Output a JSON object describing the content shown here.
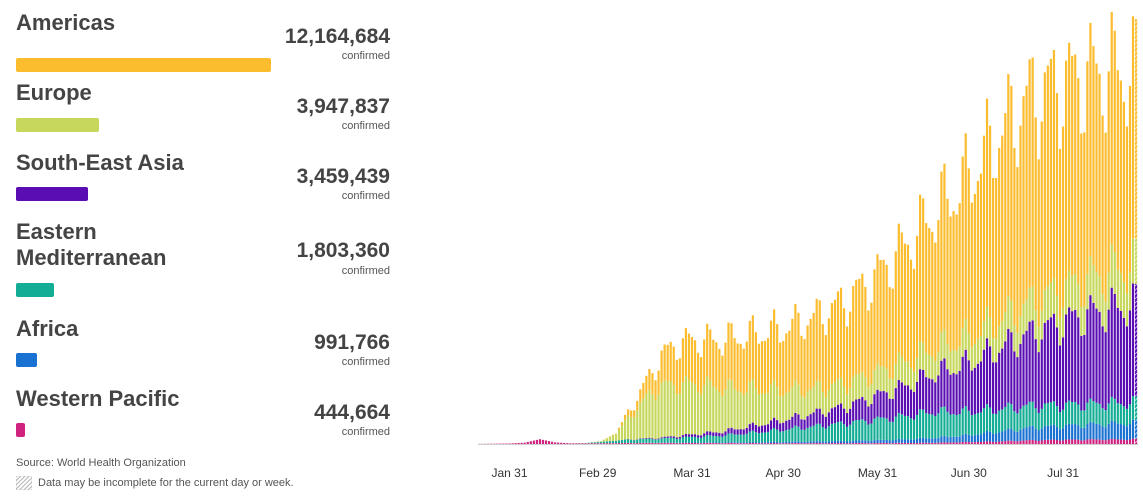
{
  "regions": [
    {
      "name": "Americas",
      "value": "12,164,684",
      "unit": "confirmed",
      "color": "#fbbc2e",
      "bar_fraction": 1.0
    },
    {
      "name": "Europe",
      "value": "3,947,837",
      "unit": "confirmed",
      "color": "#c6d75b",
      "bar_fraction": 0.325
    },
    {
      "name": "South-East Asia",
      "value": "3,459,439",
      "unit": "confirmed",
      "color": "#5a0db2",
      "bar_fraction": 0.284
    },
    {
      "name": "Eastern Mediterranean",
      "value": "1,803,360",
      "unit": "confirmed",
      "color": "#12ad94",
      "bar_fraction": 0.148
    },
    {
      "name": "Africa",
      "value": "991,766",
      "unit": "confirmed",
      "color": "#1971d1",
      "bar_fraction": 0.082
    },
    {
      "name": "Western Pacific",
      "value": "444,664",
      "unit": "confirmed",
      "color": "#d0237f",
      "bar_fraction": 0.037
    }
  ],
  "footer": {
    "source": "Source: World Health Organization",
    "note": "Data may be incomplete for the current day or week."
  },
  "chart_data": {
    "type": "bar",
    "stacked": true,
    "x_start": "2020-01-21",
    "x_end": "2020-08-24",
    "x_ticks": [
      "Jan 31",
      "Feb 29",
      "Mar 31",
      "Apr 30",
      "May 31",
      "Jun 30",
      "Jul 31"
    ],
    "y_axis_visible": false,
    "gridlines": false,
    "last_bar_incomplete": true,
    "series": [
      {
        "name": "Western Pacific",
        "color": "#d0237f",
        "keypoints": [
          [
            0,
            100
          ],
          [
            10,
            400
          ],
          [
            15,
            1000
          ],
          [
            20,
            3500
          ],
          [
            25,
            1200
          ],
          [
            30,
            500
          ],
          [
            40,
            600
          ],
          [
            60,
            800
          ],
          [
            80,
            700
          ],
          [
            100,
            600
          ],
          [
            130,
            700
          ],
          [
            150,
            900
          ],
          [
            170,
            1800
          ],
          [
            180,
            2600
          ],
          [
            190,
            3000
          ],
          [
            216,
            3400
          ]
        ]
      },
      {
        "name": "Africa",
        "color": "#1971d1",
        "keypoints": [
          [
            0,
            0
          ],
          [
            40,
            0
          ],
          [
            50,
            40
          ],
          [
            60,
            150
          ],
          [
            80,
            500
          ],
          [
            100,
            900
          ],
          [
            120,
            1500
          ],
          [
            140,
            2500
          ],
          [
            160,
            5000
          ],
          [
            180,
            9000
          ],
          [
            200,
            11000
          ],
          [
            216,
            12000
          ]
        ]
      },
      {
        "name": "Eastern Mediterranean",
        "color": "#12ad94",
        "keypoints": [
          [
            0,
            0
          ],
          [
            30,
            0
          ],
          [
            35,
            200
          ],
          [
            40,
            1000
          ],
          [
            50,
            2500
          ],
          [
            60,
            3000
          ],
          [
            80,
            5000
          ],
          [
            100,
            9000
          ],
          [
            120,
            13000
          ],
          [
            140,
            17000
          ],
          [
            150,
            19000
          ],
          [
            160,
            17000
          ],
          [
            180,
            16000
          ],
          [
            200,
            15000
          ],
          [
            216,
            15000
          ]
        ]
      },
      {
        "name": "South-East Asia",
        "color": "#5a0db2",
        "keypoints": [
          [
            0,
            0
          ],
          [
            40,
            0
          ],
          [
            50,
            200
          ],
          [
            60,
            700
          ],
          [
            80,
            3000
          ],
          [
            100,
            7000
          ],
          [
            120,
            12000
          ],
          [
            140,
            22000
          ],
          [
            160,
            35000
          ],
          [
            180,
            52000
          ],
          [
            200,
            66000
          ],
          [
            216,
            72000
          ]
        ]
      },
      {
        "name": "Europe",
        "color": "#c6d75b",
        "keypoints": [
          [
            0,
            0
          ],
          [
            35,
            0
          ],
          [
            40,
            500
          ],
          [
            45,
            5000
          ],
          [
            50,
            18000
          ],
          [
            55,
            30000
          ],
          [
            60,
            38000
          ],
          [
            70,
            37000
          ],
          [
            80,
            32000
          ],
          [
            90,
            27000
          ],
          [
            100,
            22000
          ],
          [
            110,
            18000
          ],
          [
            120,
            17000
          ],
          [
            130,
            17000
          ],
          [
            140,
            17500
          ],
          [
            150,
            18000
          ],
          [
            160,
            19000
          ],
          [
            170,
            20000
          ],
          [
            180,
            22000
          ],
          [
            190,
            24000
          ],
          [
            200,
            25000
          ],
          [
            210,
            28000
          ],
          [
            216,
            29000
          ]
        ]
      },
      {
        "name": "Americas",
        "color": "#fbbc2e",
        "keypoints": [
          [
            0,
            0
          ],
          [
            40,
            0
          ],
          [
            45,
            500
          ],
          [
            50,
            5000
          ],
          [
            55,
            12000
          ],
          [
            60,
            22000
          ],
          [
            65,
            30000
          ],
          [
            70,
            32000
          ],
          [
            80,
            35000
          ],
          [
            90,
            40000
          ],
          [
            100,
            45000
          ],
          [
            110,
            52000
          ],
          [
            120,
            60000
          ],
          [
            130,
            70000
          ],
          [
            140,
            85000
          ],
          [
            150,
            100000
          ],
          [
            160,
            115000
          ],
          [
            170,
            135000
          ],
          [
            180,
            150000
          ],
          [
            190,
            152000
          ],
          [
            200,
            150000
          ],
          [
            210,
            146000
          ],
          [
            216,
            140000
          ]
        ]
      }
    ]
  }
}
